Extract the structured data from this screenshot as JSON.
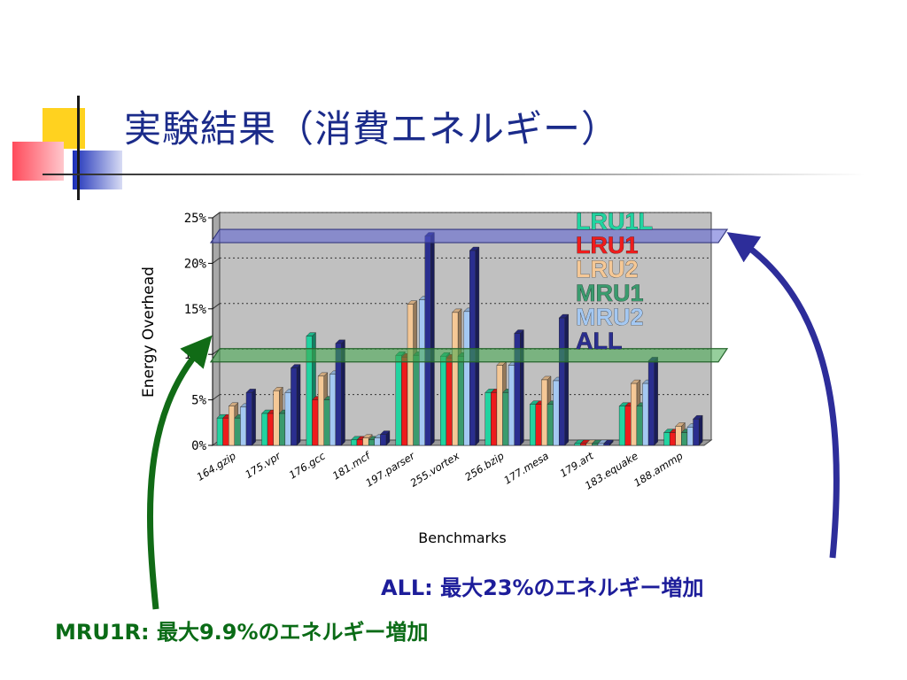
{
  "slide": {
    "title": "実験結果（消費エネルギー）",
    "caption_all": "ALL: 最大23%のエネルギー増加",
    "caption_mru": "MRU1R: 最大9.9%のエネルギー増加"
  },
  "colors": {
    "title": "#1b2b8a",
    "caption_all": "#1d1d9a",
    "caption_mru": "#0a6b16",
    "arrow_all": "#2d2d9a",
    "arrow_mru": "#116b16",
    "band_all": "#5a5fd4",
    "band_mru": "#3fa84b",
    "plot_bg": "#c0c0c0"
  },
  "chart_data": {
    "type": "bar",
    "title": "",
    "xlabel": "Benchmarks",
    "ylabel": "Energy Overhead",
    "ylim": [
      0,
      25
    ],
    "yticks": [
      "0%",
      "5%",
      "10%",
      "15%",
      "20%",
      "25%"
    ],
    "grid": true,
    "legend_position": "top-right",
    "categories": [
      "164.gzip",
      "175.vpr",
      "176.gcc",
      "181.mcf",
      "197.parser",
      "255.vortex",
      "256.bzip",
      "177.mesa",
      "179.art",
      "183.equake",
      "188.ammp"
    ],
    "series": [
      {
        "name": "LRU1L",
        "color": "#22d3a0",
        "values": [
          3,
          3.5,
          12,
          0.6,
          9.9,
          9.8,
          5.8,
          4.5,
          0.2,
          4.3,
          1.4
        ]
      },
      {
        "name": "LRU1",
        "color": "#ee1c1c",
        "values": [
          3,
          3.5,
          5,
          0.6,
          9.7,
          9.6,
          5.8,
          4.5,
          0.2,
          4.3,
          1.4
        ]
      },
      {
        "name": "LRU2",
        "color": "#f5c896",
        "values": [
          4.3,
          6,
          7.6,
          0.8,
          15.5,
          14.6,
          8.8,
          7.2,
          0.2,
          6.8,
          2.1
        ]
      },
      {
        "name": "MRU1",
        "color": "#3a9b6e",
        "values": [
          3,
          3.5,
          5,
          0.6,
          9.9,
          9.8,
          5.8,
          4.5,
          0.2,
          4.3,
          1.4
        ]
      },
      {
        "name": "MRU2",
        "color": "#a4c8f2",
        "values": [
          4.2,
          5.8,
          7.8,
          0.8,
          16,
          14.7,
          8.8,
          7.1,
          0.2,
          6.8,
          2
        ]
      },
      {
        "name": "ALL",
        "color": "#2a2e8f",
        "values": [
          5.8,
          8.5,
          11.2,
          1.2,
          23,
          21.4,
          12.3,
          14,
          0.2,
          9.3,
          2.9
        ]
      }
    ],
    "highlight_bands": [
      {
        "series": "ALL",
        "value": 23
      },
      {
        "series": "MRU1R",
        "value": 9.9
      }
    ]
  }
}
